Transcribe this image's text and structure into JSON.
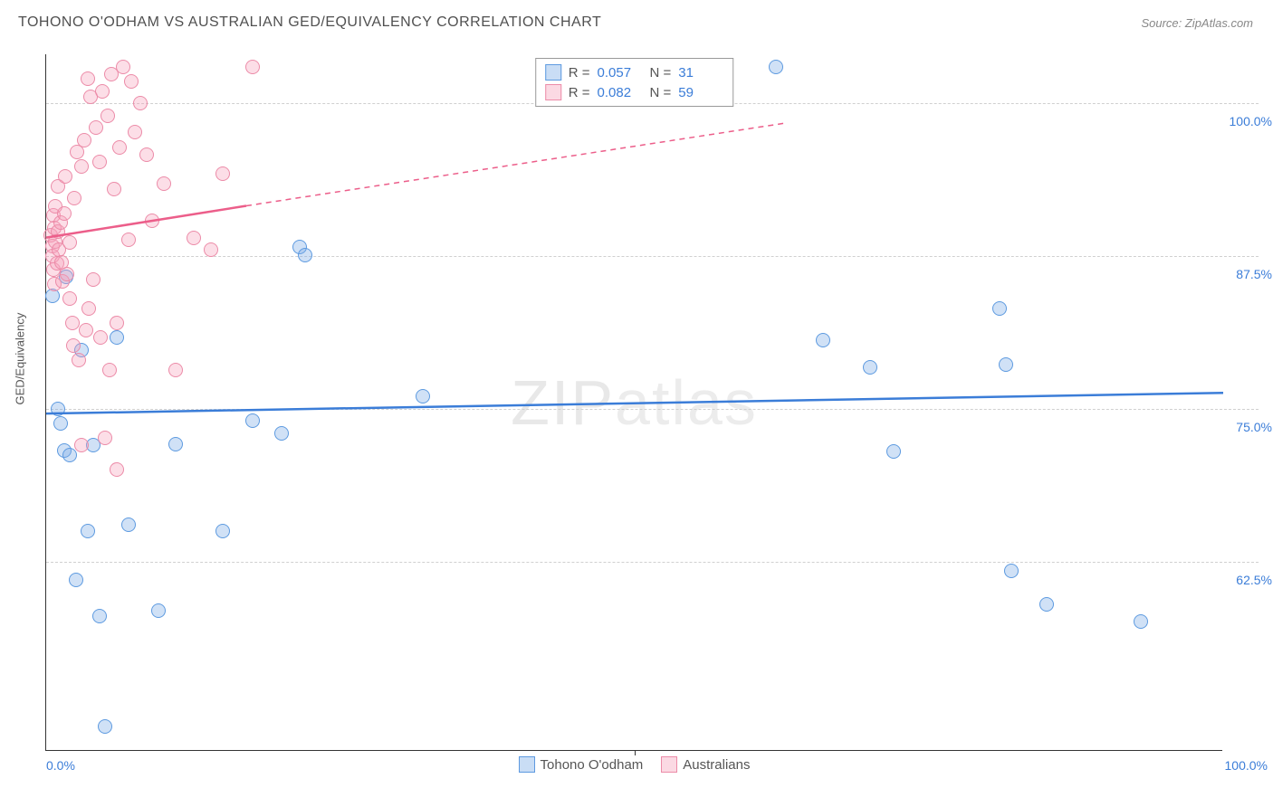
{
  "title": "TOHONO O'ODHAM VS AUSTRALIAN GED/EQUIVALENCY CORRELATION CHART",
  "source": "Source: ZipAtlas.com",
  "watermark_a": "ZIP",
  "watermark_b": "atlas",
  "y_axis_label": "GED/Equivalency",
  "chart": {
    "type": "scatter",
    "background_color": "#ffffff",
    "grid_color": "#d0d0d0",
    "axis_color": "#353535",
    "xlim": [
      0,
      100
    ],
    "ylim": [
      47,
      104
    ],
    "yticks": [
      62.5,
      75.0,
      87.5,
      100.0
    ],
    "ytick_labels": [
      "62.5%",
      "75.0%",
      "87.5%",
      "100.0%"
    ],
    "xticks": [
      0,
      50,
      100
    ],
    "xtick_labels": [
      "0.0%",
      "",
      "100.0%"
    ],
    "xtick_minor": 50,
    "label_fontsize": 13,
    "tick_fontsize": 14,
    "tick_color": "#3b7dd8",
    "point_radius": 8,
    "series": [
      {
        "name": "Tohono O'odham",
        "color_fill": "rgba(120,170,230,0.35)",
        "color_stroke": "#5d9ae0",
        "R": "0.057",
        "N": "31",
        "trend": {
          "x1": 0,
          "y1": 74.6,
          "x2": 100,
          "y2": 76.3,
          "stroke": "#3b7dd8",
          "width": 2.5,
          "dash": "none"
        },
        "points": [
          [
            0.5,
            84.2
          ],
          [
            1.0,
            75.0
          ],
          [
            1.2,
            73.8
          ],
          [
            1.5,
            71.6
          ],
          [
            1.7,
            85.8
          ],
          [
            2.0,
            71.2
          ],
          [
            2.5,
            61.0
          ],
          [
            3.0,
            79.8
          ],
          [
            3.5,
            65.0
          ],
          [
            4.0,
            72.0
          ],
          [
            4.5,
            58.0
          ],
          [
            5.0,
            49.0
          ],
          [
            6.0,
            80.8
          ],
          [
            7.0,
            65.5
          ],
          [
            9.5,
            58.5
          ],
          [
            11.0,
            72.1
          ],
          [
            15.0,
            65.0
          ],
          [
            17.5,
            74.0
          ],
          [
            20.0,
            73.0
          ],
          [
            21.5,
            88.2
          ],
          [
            22.0,
            87.6
          ],
          [
            32.0,
            76.0
          ],
          [
            62.0,
            103.0
          ],
          [
            66.0,
            80.6
          ],
          [
            70.0,
            78.4
          ],
          [
            72.0,
            71.5
          ],
          [
            81.0,
            83.2
          ],
          [
            81.5,
            78.6
          ],
          [
            82.0,
            61.7
          ],
          [
            85.0,
            59.0
          ],
          [
            93.0,
            57.6
          ]
        ]
      },
      {
        "name": "Australians",
        "color_fill": "rgba(245,160,185,0.35)",
        "color_stroke": "#ec8ba8",
        "R": "0.082",
        "N": "59",
        "trend": {
          "x1": 0,
          "y1": 89.0,
          "x2_solid": 17,
          "y2_solid": 91.6,
          "x2": 63,
          "y2": 98.4,
          "stroke": "#ec5e8a",
          "width": 2.5
        },
        "points": [
          [
            0.4,
            89.2
          ],
          [
            0.5,
            88.3
          ],
          [
            0.5,
            87.5
          ],
          [
            0.6,
            90.8
          ],
          [
            0.6,
            86.4
          ],
          [
            0.7,
            89.8
          ],
          [
            0.7,
            85.2
          ],
          [
            0.8,
            88.7
          ],
          [
            0.8,
            91.6
          ],
          [
            0.9,
            86.9
          ],
          [
            1.0,
            89.5
          ],
          [
            1.0,
            93.2
          ],
          [
            1.1,
            88.0
          ],
          [
            1.2,
            90.2
          ],
          [
            1.3,
            87.0
          ],
          [
            1.4,
            85.4
          ],
          [
            1.5,
            91.0
          ],
          [
            1.6,
            94.0
          ],
          [
            1.8,
            86.0
          ],
          [
            2.0,
            88.6
          ],
          [
            2.0,
            84.0
          ],
          [
            2.2,
            82.0
          ],
          [
            2.3,
            80.2
          ],
          [
            2.4,
            92.2
          ],
          [
            2.6,
            96.0
          ],
          [
            2.8,
            79.0
          ],
          [
            3.0,
            94.8
          ],
          [
            3.2,
            97.0
          ],
          [
            3.4,
            81.4
          ],
          [
            3.5,
            102.0
          ],
          [
            3.6,
            83.2
          ],
          [
            3.8,
            100.5
          ],
          [
            4.0,
            85.6
          ],
          [
            4.2,
            98.0
          ],
          [
            4.5,
            95.2
          ],
          [
            4.6,
            80.8
          ],
          [
            4.8,
            101.0
          ],
          [
            5.0,
            72.6
          ],
          [
            5.2,
            99.0
          ],
          [
            5.4,
            78.2
          ],
          [
            5.5,
            102.4
          ],
          [
            5.8,
            93.0
          ],
          [
            6.0,
            70.0
          ],
          [
            6.2,
            96.4
          ],
          [
            6.5,
            103.0
          ],
          [
            7.0,
            88.8
          ],
          [
            7.2,
            101.8
          ],
          [
            7.5,
            97.6
          ],
          [
            8.0,
            100.0
          ],
          [
            8.5,
            95.8
          ],
          [
            9.0,
            90.4
          ],
          [
            10.0,
            93.4
          ],
          [
            11.0,
            78.2
          ],
          [
            12.5,
            89.0
          ],
          [
            14.0,
            88.0
          ],
          [
            15.0,
            94.2
          ],
          [
            17.5,
            103.0
          ],
          [
            3.0,
            72.0
          ],
          [
            6.0,
            82.0
          ]
        ]
      }
    ]
  },
  "stats_legend": {
    "r_label": "R =",
    "n_label": "N ="
  }
}
